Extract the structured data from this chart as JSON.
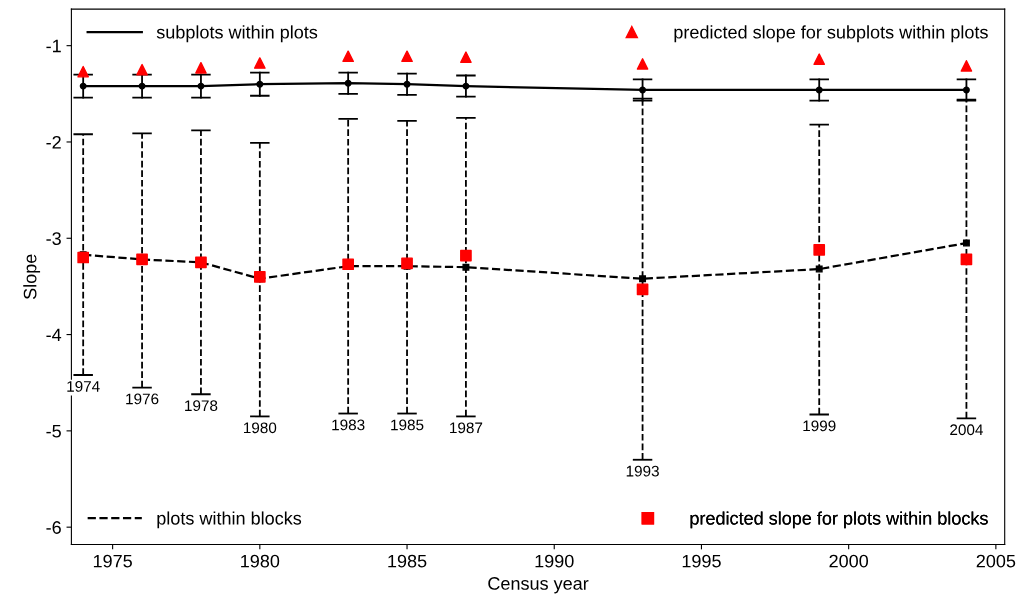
{
  "chart_data": {
    "type": "line",
    "xlabel": "Census year",
    "ylabel": "Slope",
    "xlim": [
      1973.6,
      2005.3
    ],
    "ylim": [
      -6.18,
      -0.62
    ],
    "xticks": [
      1975,
      1980,
      1985,
      1990,
      1995,
      2000,
      2005
    ],
    "yticks": [
      -6,
      -5,
      -4,
      -3,
      -2,
      -1
    ],
    "grid": false,
    "legend": "bottom left",
    "x": [
      1974,
      1976,
      1978,
      1980,
      1983,
      1985,
      1987,
      1993,
      1999,
      2004
    ],
    "series": [
      {
        "name": "subplots within plots",
        "color": "#000000",
        "line_style": "solid",
        "marker": "circle",
        "values": [
          -1.42,
          -1.42,
          -1.42,
          -1.4,
          -1.39,
          -1.4,
          -1.42,
          -1.46,
          -1.46,
          -1.46
        ],
        "errors": [
          0.12,
          0.12,
          0.12,
          0.12,
          0.11,
          0.11,
          0.11,
          0.11,
          0.11,
          0.11
        ]
      },
      {
        "name": "predicted slope for subplots within plots",
        "type": "scatter",
        "color": "#ff0000",
        "marker": "triangle",
        "values": [
          -1.27,
          -1.25,
          -1.23,
          -1.18,
          -1.11,
          -1.11,
          -1.12,
          -1.19,
          -1.14,
          -1.21
        ]
      },
      {
        "name": "plots within blocks",
        "color": "#000000",
        "line_style": "dashed",
        "marker": "square",
        "values": [
          -3.17,
          -3.22,
          -3.25,
          -3.42,
          -3.29,
          -3.29,
          -3.3,
          -3.42,
          -3.32,
          -3.05
        ],
        "errors": [
          [
            -4.42,
            -1.92
          ],
          [
            -4.55,
            -1.91
          ],
          [
            -4.62,
            -1.88
          ],
          [
            -4.85,
            -2.01
          ],
          [
            -4.82,
            -1.76
          ],
          [
            -4.82,
            -1.78
          ],
          [
            -4.85,
            -1.75
          ],
          [
            -5.3,
            -1.55
          ],
          [
            -4.83,
            -1.82
          ],
          [
            -4.87,
            -1.56
          ]
        ]
      },
      {
        "name": "predicted slope for plots within blocks",
        "type": "scatter",
        "color": "#ff0000",
        "marker": "square",
        "values": [
          -3.2,
          -3.22,
          -3.25,
          -3.4,
          -3.27,
          -3.26,
          -3.18,
          -3.53,
          -3.12,
          -3.22
        ]
      }
    ],
    "annotations": [
      {
        "text": "1974",
        "x": 1974,
        "y": -4.42
      },
      {
        "text": "1976",
        "x": 1976,
        "y": -4.55
      },
      {
        "text": "1978",
        "x": 1978,
        "y": -4.62
      },
      {
        "text": "1980",
        "x": 1980,
        "y": -4.85
      },
      {
        "text": "1983",
        "x": 1983,
        "y": -4.82
      },
      {
        "text": "1985",
        "x": 1985,
        "y": -4.82
      },
      {
        "text": "1987",
        "x": 1987,
        "y": -4.85
      },
      {
        "text": "1993",
        "x": 1993,
        "y": -5.3
      },
      {
        "text": "1999",
        "x": 1999,
        "y": -4.83
      },
      {
        "text": "2004",
        "x": 2004,
        "y": -4.87
      }
    ]
  }
}
